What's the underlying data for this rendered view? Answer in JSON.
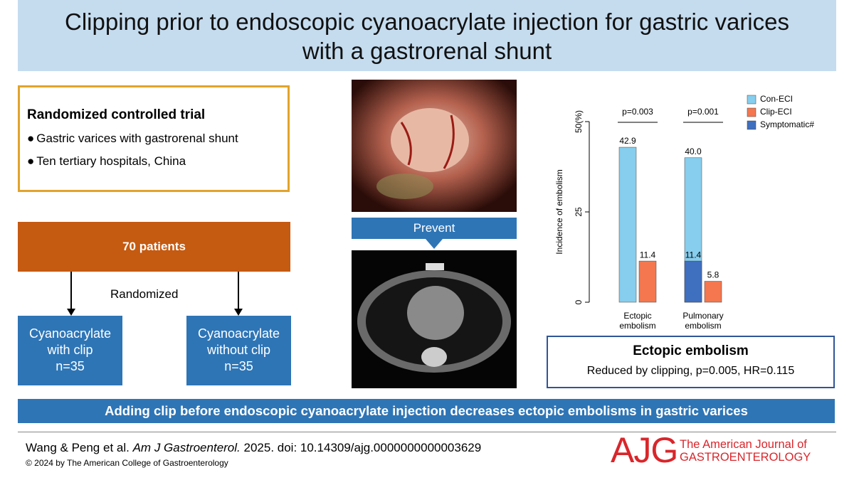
{
  "header": {
    "title": "Clipping prior to endoscopic cyanoacrylate injection for gastric varices with a gastrorenal shunt"
  },
  "trial": {
    "heading": "Randomized controlled trial",
    "bullets": [
      "Gastric varices with gastrorenal shunt",
      "Ten tertiary hospitals, China"
    ]
  },
  "flow": {
    "total": "70 patients",
    "randomized": "Randomized",
    "arms": [
      [
        "Cyanoacrylate",
        "with clip",
        "n=35"
      ],
      [
        "Cyanoacrylate",
        "without clip",
        "n=35"
      ]
    ]
  },
  "images": {
    "prevent": "Prevent"
  },
  "chart_data": {
    "type": "bar",
    "y_label": "Incidence of embolism",
    "categories": [
      "Ectopic embolism",
      "Pulmonary embolism"
    ],
    "annotations": [
      "p=0.003",
      "p=0.001"
    ],
    "series": [
      {
        "name": "Con-ECI",
        "color": "#87cded",
        "values": [
          42.9,
          40
        ],
        "value_labels": [
          "42.9",
          "40.0"
        ]
      },
      {
        "name": "Clip-ECI",
        "color": "#f4774f",
        "values": [
          11.4,
          5.8
        ]
      },
      {
        "name": "Symptomatic#",
        "color": "#3f6fbf",
        "values": [
          null,
          11.4
        ]
      }
    ],
    "ylim": [
      0,
      50
    ],
    "yticks": [
      0,
      25,
      {
        "value": 50,
        "label": "50(%)"
      }
    ]
  },
  "result": {
    "heading": "Ectopic embolism",
    "text": "Reduced by clipping, p=0.005, HR=0.115"
  },
  "conclusion": "Adding clip before endoscopic cyanoacrylate injection decreases ectopic embolisms in gastric varices",
  "citation": {
    "authors": "Wang & Peng et al.",
    "journal": "Am J Gastroenterol.",
    "rest": "2025. doi: 10.14309/ajg.0000000000003629",
    "copyright": "© 2024 by The American College of Gastroenterology"
  },
  "logo": {
    "mark": "AJG",
    "line1": "The American Journal of",
    "line2": "GASTROENTEROLOGY"
  }
}
